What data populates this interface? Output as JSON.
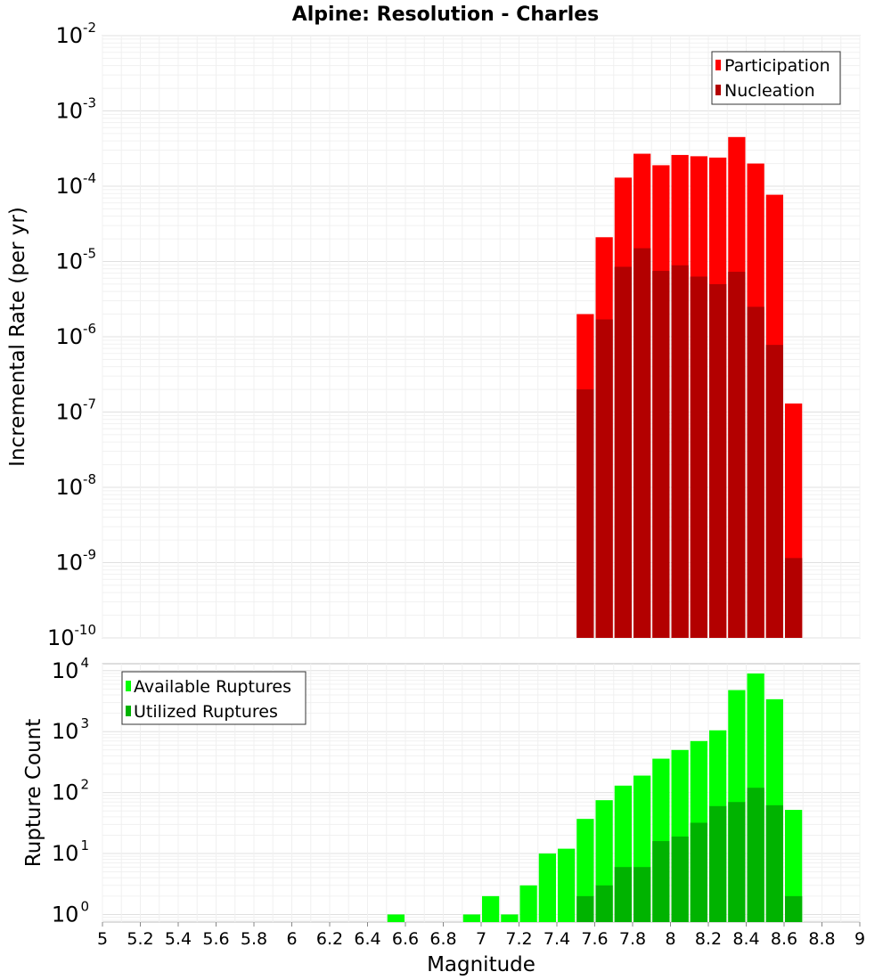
{
  "chart_data": [
    {
      "type": "bar",
      "title": "Alpine: Resolution - Charles",
      "xlabel": "",
      "ylabel": "Incremental Rate (per yr)",
      "yscale": "log",
      "ylim": [
        1e-10,
        0.01
      ],
      "xlim": [
        5,
        9
      ],
      "grid": true,
      "legend_position": "top-right",
      "bin_width": 0.1,
      "x": [
        7.55,
        7.65,
        7.75,
        7.85,
        7.95,
        8.05,
        8.15,
        8.25,
        8.35,
        8.45,
        8.55,
        8.65
      ],
      "series": [
        {
          "name": "Participation",
          "color": "#ff0000",
          "values": [
            2e-06,
            2.1e-05,
            0.00013,
            0.00027,
            0.00019,
            0.00026,
            0.00025,
            0.00024,
            0.00045,
            0.0002,
            7.7e-05,
            1.3e-07
          ]
        },
        {
          "name": "Nucleation",
          "color": "#b30000",
          "values": [
            2e-07,
            1.7e-06,
            8.5e-06,
            1.5e-05,
            7.5e-06,
            8.9e-06,
            6.3e-06,
            5e-06,
            7.3e-06,
            2.5e-06,
            7.8e-07,
            1.15e-09
          ]
        }
      ]
    },
    {
      "type": "bar",
      "title": "",
      "xlabel": "Magnitude",
      "ylabel": "Rupture Count",
      "yscale": "log",
      "ylim": [
        0.75,
        13000
      ],
      "xlim": [
        5,
        9
      ],
      "x_ticks": [
        "5",
        "5.2",
        "5.4",
        "5.6",
        "5.8",
        "6",
        "6.2",
        "6.4",
        "6.6",
        "6.8",
        "7",
        "7.2",
        "7.4",
        "7.6",
        "7.8",
        "8",
        "8.2",
        "8.4",
        "8.6",
        "8.8",
        "9"
      ],
      "grid": true,
      "legend_position": "top-left",
      "bin_width": 0.1,
      "x": [
        6.55,
        6.95,
        7.05,
        7.15,
        7.25,
        7.35,
        7.45,
        7.55,
        7.65,
        7.75,
        7.85,
        7.95,
        8.05,
        8.15,
        8.25,
        8.35,
        8.45,
        8.55,
        8.65
      ],
      "series": [
        {
          "name": "Available Ruptures",
          "color": "#00ff00",
          "values": [
            1,
            1,
            2,
            1,
            3,
            10,
            12,
            37,
            75,
            130,
            190,
            360,
            500,
            700,
            1050,
            4800,
            9000,
            3400,
            52
          ]
        },
        {
          "name": "Utilized Ruptures",
          "color": "#00b300",
          "values": [
            0,
            0,
            0,
            0,
            0,
            0,
            0,
            2,
            3,
            6,
            6,
            16,
            19,
            32,
            60,
            70,
            120,
            62,
            2
          ]
        }
      ]
    }
  ]
}
